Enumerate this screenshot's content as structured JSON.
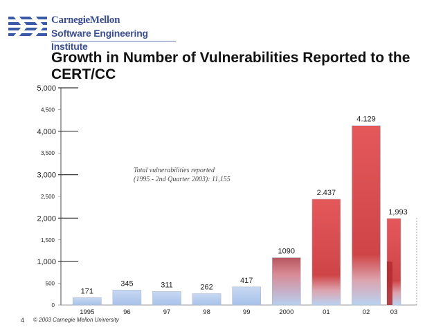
{
  "header": {
    "org_line1": "CarnegieMellon",
    "org_line2": "Software Engineering Institute"
  },
  "title": "Growth in Number of Vulnerabilities Reported to the CERT/CC",
  "annotation": {
    "line1": "Total vulnerabilities reported",
    "line2": "(1995 - 2nd Quarter 2003): 11,155"
  },
  "footer": {
    "page_number": "4",
    "copyright": "© 2003 Carnegie Mellon University"
  },
  "colors": {
    "bar_early": "#a9c4ea",
    "bar_red": "#dc4d4f",
    "bar_blue_base": "#b9d2f2",
    "axis": "#333333"
  },
  "chart_data": {
    "type": "bar",
    "title": "Growth in Number of Vulnerabilities Reported to the CERT/CC",
    "xlabel": "",
    "ylabel": "",
    "categories": [
      "1995",
      "96",
      "97",
      "98",
      "99",
      "2000",
      "01",
      "02",
      "03"
    ],
    "values": [
      171,
      345,
      311,
      262,
      417,
      1090,
      2437,
      4129,
      1993
    ],
    "value_labels": [
      "171",
      "345",
      "311",
      "262",
      "417",
      "1090",
      "2.437",
      "4.129",
      "1,993"
    ],
    "ylim": [
      0,
      5000
    ],
    "y_ticks": [
      0,
      500,
      1000,
      1500,
      2000,
      2500,
      3000,
      3500,
      4000,
      4500,
      5000
    ],
    "y_tick_labels": [
      "0",
      "500",
      "1,000",
      "1,500",
      "2,000",
      "2,500",
      "3,000",
      "3,500",
      "4,000",
      "4,500",
      "5,000"
    ],
    "major_ticks": [
      1000,
      2000,
      3000,
      4000,
      5000
    ],
    "partial_year": "03",
    "grid": false,
    "legend": "none"
  }
}
